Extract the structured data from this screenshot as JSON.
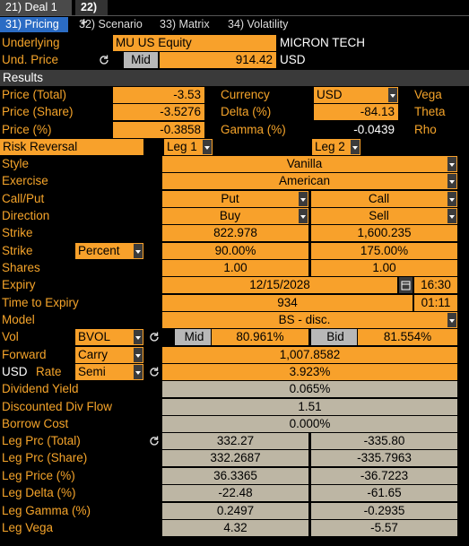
{
  "tabs": {
    "deals": [
      "21) Deal 1",
      "22) +"
    ],
    "pages": [
      "31) Pricing",
      "32) Scenario",
      "33) Matrix",
      "34) Volatility"
    ]
  },
  "underlying": {
    "label": "Underlying",
    "ticker": "MU US Equity",
    "name": "MICRON TECH"
  },
  "und_price": {
    "label": "Und. Price",
    "source": "Mid",
    "value": "914.42",
    "currency": "USD"
  },
  "results": {
    "title": "Results",
    "rows": [
      {
        "label": "Price (Total)",
        "value": "-3.53",
        "label2": "Currency",
        "value2": "USD",
        "label3": "Vega"
      },
      {
        "label": "Price (Share)",
        "value": "-3.5276",
        "label2": "Delta (%)",
        "value2": "-84.13",
        "label3": "Theta"
      },
      {
        "label": "Price (%)",
        "value": "-0.3858",
        "label2": "Gamma (%)",
        "value2": "-0.0439",
        "label3": "Rho"
      }
    ]
  },
  "legs_header": {
    "label": "Risk Reversal",
    "leg1": "Leg 1",
    "leg2": "Leg 2"
  },
  "params": {
    "style": {
      "label": "Style",
      "value": "Vanilla"
    },
    "exercise": {
      "label": "Exercise",
      "value": "American"
    },
    "call_put": {
      "label": "Call/Put",
      "leg1": "Put",
      "leg2": "Call"
    },
    "direction": {
      "label": "Direction",
      "leg1": "Buy",
      "leg2": "Sell"
    },
    "strike": {
      "label": "Strike",
      "leg1": "822.978",
      "leg2": "1,600.235"
    },
    "strike_pct": {
      "label": "Strike",
      "mode": "Percent",
      "leg1": "90.00%",
      "leg2": "175.00%"
    },
    "shares": {
      "label": "Shares",
      "leg1": "1.00",
      "leg2": "1.00"
    },
    "expiry": {
      "label": "Expiry",
      "date": "12/15/2028",
      "time": "16:30"
    },
    "time_to_expiry": {
      "label": "Time to Expiry",
      "days": "934",
      "time": "01:11"
    },
    "model": {
      "label": "Model",
      "value": "BS - disc."
    },
    "vol": {
      "label": "Vol",
      "source": "BVOL",
      "leg1_side": "Mid",
      "leg1": "80.961%",
      "leg2_side": "Bid",
      "leg2": "81.554%"
    },
    "forward": {
      "label": "Forward",
      "method": "Carry",
      "value": "1,007.8582"
    },
    "rate": {
      "currency": "USD",
      "label": "Rate",
      "method": "Semi",
      "value": "3.923%"
    },
    "dividend_yield": {
      "label": "Dividend Yield",
      "value": "0.065%"
    },
    "discounted_div_flow": {
      "label": "Discounted Div Flow",
      "value": "1.51"
    },
    "borrow_cost": {
      "label": "Borrow Cost",
      "value": "0.000%"
    }
  },
  "leg_results": {
    "rows": [
      {
        "label": "Leg Prc (Total)",
        "leg1": "332.27",
        "leg2": "-335.80"
      },
      {
        "label": "Leg Prc (Share)",
        "leg1": "332.2687",
        "leg2": "-335.7963"
      },
      {
        "label": "Leg Price (%)",
        "leg1": "36.3365",
        "leg2": "-36.7223"
      },
      {
        "label": "Leg Delta (%)",
        "leg1": "-22.48",
        "leg2": "-61.65"
      },
      {
        "label": "Leg Gamma (%)",
        "leg1": "0.2497",
        "leg2": "-0.2935"
      },
      {
        "label": "Leg Vega",
        "leg1": "4.32",
        "leg2": "-5.57"
      }
    ]
  }
}
